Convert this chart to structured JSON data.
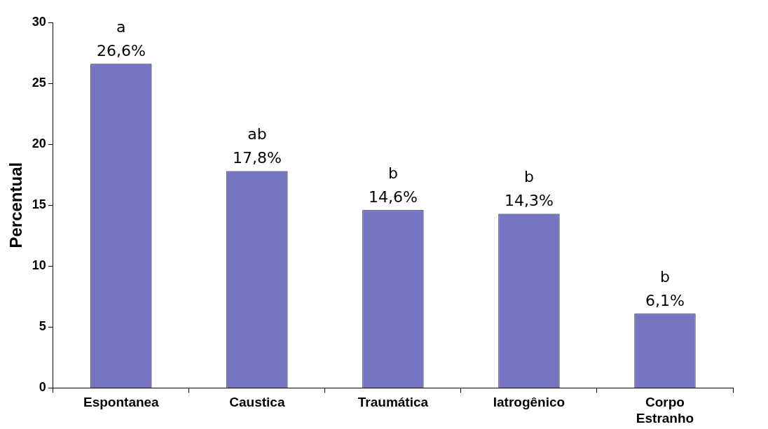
{
  "chart_data": {
    "type": "bar",
    "ylabel": "Percentual",
    "categories": [
      "Espontanea",
      "Caustica",
      "Traumática",
      "Iatrogênico",
      "Corpo Estranho"
    ],
    "values": [
      26.6,
      17.8,
      14.6,
      14.3,
      6.1
    ],
    "value_labels": [
      "26,6%",
      "17,8%",
      "14,6%",
      "14,3%",
      "6,1%"
    ],
    "color": "#7575c4",
    "ylim": [
      0,
      30
    ],
    "yticks": [
      0,
      5,
      10,
      15,
      20,
      25,
      30
    ],
    "grid": false,
    "annotations": [
      {
        "text": "a",
        "x": "Espontanea",
        "y": 26.6
      },
      {
        "text": "ab",
        "x": "Caustica",
        "y": 17.8
      },
      {
        "text": "b",
        "x": "Traumática",
        "y": 14.6
      },
      {
        "text": "b",
        "x": "Iatrogênico",
        "y": 14.3
      },
      {
        "text": "b",
        "x": "Corpo Estranho",
        "y": 6.1
      }
    ]
  }
}
